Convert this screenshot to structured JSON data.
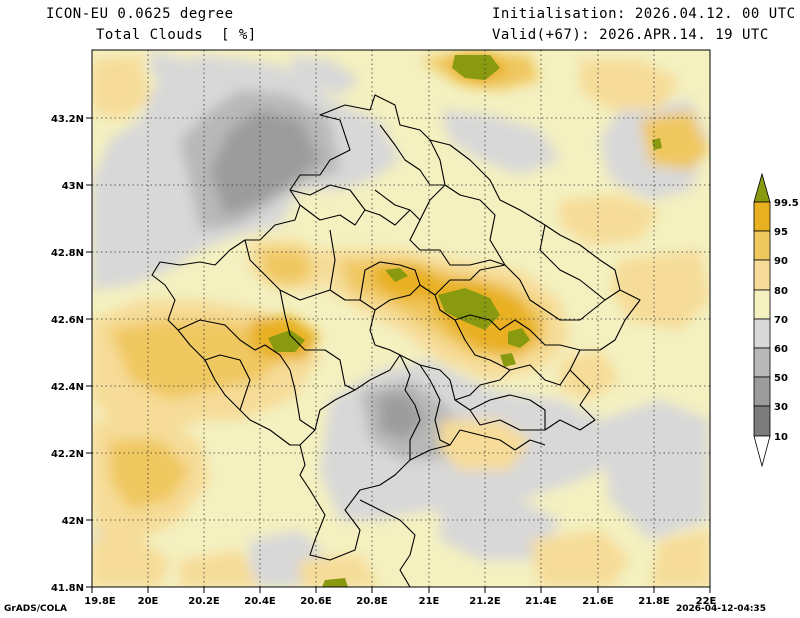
{
  "header": {
    "model": "ICON-EU 0.0625 degree",
    "variable": "Total Clouds  [ %]",
    "init": "Initialisation: 2026.04.12. 00 UTC",
    "valid": "Valid(+67): 2026.APR.14. 19 UTC"
  },
  "axes": {
    "lat_ticks": [
      "43.2N",
      "43N",
      "42.8N",
      "42.6N",
      "42.4N",
      "42.2N",
      "42N",
      "41.8N"
    ],
    "lon_ticks": [
      "19.8E",
      "20E",
      "20.2E",
      "20.4E",
      "20.6E",
      "20.8E",
      "21E",
      "21.2E",
      "21.4E",
      "21.6E",
      "21.8E",
      "22E"
    ]
  },
  "colorbar": {
    "labels": [
      "99.5",
      "95",
      "90",
      "80",
      "70",
      "60",
      "50",
      "30",
      "10"
    ],
    "colors": {
      "99.5+": "#8a9a10",
      "95-99.5": "#e8b020",
      "90-95": "#f0c860",
      "80-90": "#f6dc98",
      "70-80": "#f4f0c0",
      "60-70": "#d8d8d8",
      "50-60": "#b8b8b8",
      "30-50": "#9c9c9c",
      "10-30": "#7c7c7c",
      "<10": "#5c5c5c",
      "0": "#ffffff"
    }
  },
  "footer": {
    "left": "GrADS/COLA",
    "right": "2026-04-12-04:35"
  }
}
